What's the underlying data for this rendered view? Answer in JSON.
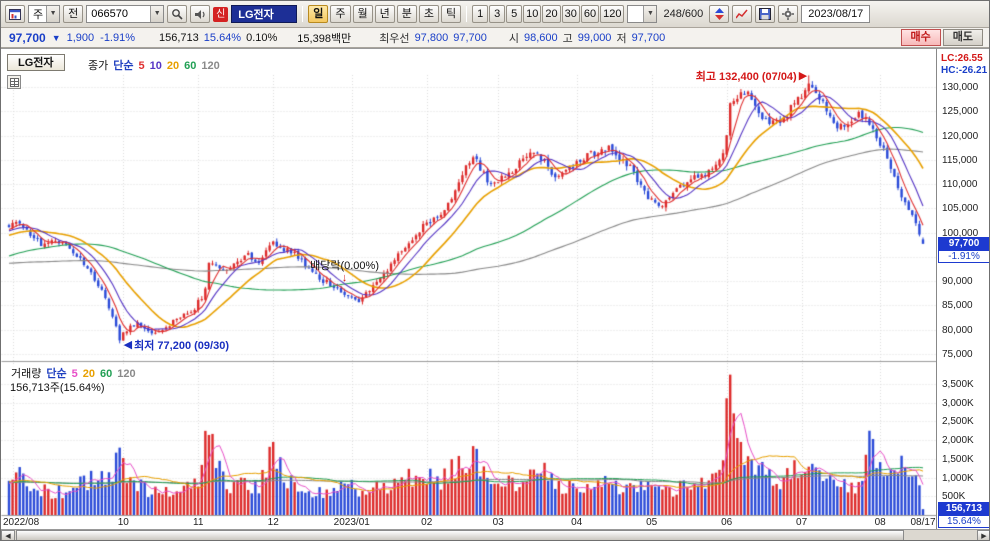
{
  "toolbar": {
    "asset_dropdown": "주",
    "jeon_button": "전",
    "stock_code": "066570",
    "new_badge": "신",
    "stock_name": "LG전자",
    "period_buttons": [
      "일",
      "주",
      "월",
      "년",
      "분",
      "초",
      "틱"
    ],
    "active_period": "일",
    "interval_buttons": [
      "1",
      "3",
      "5",
      "10",
      "20",
      "30",
      "60",
      "120"
    ],
    "candle_count": "248/600",
    "date": "2023/08/17"
  },
  "icons": {
    "dropdown_arrow": "▼",
    "left_arrow": "◀",
    "right_arrow": "▶",
    "marker_right": "▶",
    "marker_left": "◀",
    "marker_down": "↓"
  },
  "quote": {
    "price": "97,700",
    "change_arrow": "▼",
    "change": "1,900",
    "change_pct": "-1.91%",
    "volume": "156,713",
    "volume_ratio": "15.64%",
    "turnover": "0.10%",
    "amount": "15,398백만",
    "best_label": "최우선",
    "best_ask": "97,800",
    "best_bid": "97,700",
    "open_label": "시",
    "open": "98,600",
    "high_label": "고",
    "high": "99,000",
    "low_label": "저",
    "low": "97,700",
    "buy_button": "매수",
    "sell_button": "매도"
  },
  "chart": {
    "tab": "LG전자",
    "lc": "LC:26.55",
    "hc": "HC:-26.21",
    "price_axis": [
      "130,000",
      "125,000",
      "120,000",
      "115,000",
      "110,000",
      "105,000",
      "100,000",
      "95,000",
      "90,000",
      "85,000",
      "80,000",
      "75,000"
    ],
    "current_badge": "97,700",
    "current_pct": "-1.91%",
    "price_legend": {
      "name": "종가",
      "type": "단순",
      "periods": [
        {
          "label": "5",
          "color": "#e03030"
        },
        {
          "label": "10",
          "color": "#5535c5"
        },
        {
          "label": "20",
          "color": "#e8a000"
        },
        {
          "label": "60",
          "color": "#22a055"
        },
        {
          "label": "120",
          "color": "#8a8a8a"
        }
      ]
    },
    "annotations": {
      "high": "최고 132,400 (07/04)",
      "low": "최저 77,200 (09/30)",
      "dividend": "배당락(0.00%)"
    }
  },
  "volume_pane": {
    "legend": {
      "name": "거래량",
      "type": "단순",
      "periods": [
        {
          "label": "5",
          "color": "#e84fc8"
        },
        {
          "label": "20",
          "color": "#e8a000"
        },
        {
          "label": "60",
          "color": "#22a055"
        },
        {
          "label": "120",
          "color": "#8a8a8a"
        }
      ]
    },
    "current_text": "156,713주(15.64%)",
    "axis": [
      "3,500K",
      "3,000K",
      "2,500K",
      "2,000K",
      "1,500K",
      "1,000K",
      "500K"
    ],
    "badge": "156,713",
    "badge_pct": "15.64%"
  },
  "chart_data": {
    "type": "candlestick+volume",
    "count": 257,
    "price_range": {
      "min": 75000,
      "max": 130000,
      "step": 5000
    },
    "volume_range_k": {
      "max": 3500,
      "step": 500
    },
    "colors": {
      "up": "#dd2a2a",
      "down": "#2a4ad8",
      "grid": "#dcdcdc",
      "separator": "#9a9a9a"
    },
    "months": [
      {
        "label": "2022/08",
        "index": 1,
        "grid": true
      },
      {
        "label": "10",
        "index": 32,
        "grid": true
      },
      {
        "label": "11",
        "index": 53,
        "grid": true
      },
      {
        "label": "12",
        "index": 74,
        "grid": true
      },
      {
        "label": "2023/01",
        "index": 96,
        "grid": true
      },
      {
        "label": "02",
        "index": 117,
        "grid": true
      },
      {
        "label": "03",
        "index": 137,
        "grid": true
      },
      {
        "label": "04",
        "index": 159,
        "grid": true
      },
      {
        "label": "05",
        "index": 180,
        "grid": true
      },
      {
        "label": "06",
        "index": 201,
        "grid": true
      },
      {
        "label": "07",
        "index": 222,
        "grid": true
      },
      {
        "label": "08",
        "index": 244,
        "grid": true
      },
      {
        "label": "08/17",
        "index": 256,
        "grid": false
      }
    ],
    "markers": {
      "high": {
        "index": 224,
        "price": 132400
      },
      "low": {
        "index": 31,
        "price": 77200
      },
      "dividend": {
        "index": 94
      }
    },
    "last": {
      "open": 98600,
      "high": 99000,
      "low": 97700,
      "close": 97700,
      "prev_close": 99600,
      "volumeK": 157
    },
    "volume_spike": {
      "index": 202,
      "valueK": 3750
    },
    "price_anchors": [
      [
        0,
        101000
      ],
      [
        2,
        102500
      ],
      [
        5,
        100500
      ],
      [
        9,
        97800
      ],
      [
        13,
        98800
      ],
      [
        17,
        96800
      ],
      [
        21,
        93500
      ],
      [
        26,
        88500
      ],
      [
        30,
        80500
      ],
      [
        31,
        77900
      ],
      [
        33,
        80000
      ],
      [
        36,
        81200
      ],
      [
        40,
        79200
      ],
      [
        44,
        80500
      ],
      [
        48,
        82500
      ],
      [
        52,
        84500
      ],
      [
        55,
        88000
      ],
      [
        56,
        94000
      ],
      [
        58,
        93000
      ],
      [
        61,
        92000
      ],
      [
        64,
        94500
      ],
      [
        67,
        95200
      ],
      [
        70,
        93800
      ],
      [
        74,
        98300
      ],
      [
        76,
        97000
      ],
      [
        80,
        95500
      ],
      [
        84,
        92500
      ],
      [
        88,
        90200
      ],
      [
        92,
        88500
      ],
      [
        95,
        86800
      ],
      [
        98,
        86200
      ],
      [
        101,
        88000
      ],
      [
        104,
        90500
      ],
      [
        107,
        93500
      ],
      [
        110,
        96000
      ],
      [
        113,
        98500
      ],
      [
        116,
        101200
      ],
      [
        119,
        102500
      ],
      [
        122,
        104000
      ],
      [
        125,
        108500
      ],
      [
        128,
        113500
      ],
      [
        130,
        115800
      ],
      [
        133,
        112000
      ],
      [
        135,
        109800
      ],
      [
        138,
        111500
      ],
      [
        141,
        113000
      ],
      [
        144,
        115000
      ],
      [
        147,
        116300
      ],
      [
        150,
        114800
      ],
      [
        153,
        111000
      ],
      [
        156,
        112500
      ],
      [
        159,
        114000
      ],
      [
        162,
        115800
      ],
      [
        165,
        116800
      ],
      [
        168,
        117200
      ],
      [
        171,
        115500
      ],
      [
        174,
        113800
      ],
      [
        177,
        109500
      ],
      [
        180,
        106500
      ],
      [
        182,
        105200
      ],
      [
        185,
        107500
      ],
      [
        188,
        109500
      ],
      [
        191,
        111000
      ],
      [
        194,
        112000
      ],
      [
        197,
        113000
      ],
      [
        200,
        116500
      ],
      [
        201,
        120000
      ],
      [
        202,
        126000
      ],
      [
        204,
        127500
      ],
      [
        206,
        129200
      ],
      [
        208,
        128000
      ],
      [
        211,
        124000
      ],
      [
        214,
        122500
      ],
      [
        217,
        123500
      ],
      [
        220,
        126500
      ],
      [
        222,
        128500
      ],
      [
        224,
        130800
      ],
      [
        226,
        128500
      ],
      [
        229,
        125500
      ],
      [
        232,
        121000
      ],
      [
        235,
        123000
      ],
      [
        238,
        124500
      ],
      [
        240,
        123500
      ],
      [
        242,
        121000
      ],
      [
        244,
        118500
      ],
      [
        246,
        115500
      ],
      [
        248,
        111500
      ],
      [
        250,
        107500
      ],
      [
        252,
        104500
      ],
      [
        254,
        101500
      ],
      [
        255,
        99800
      ],
      [
        256,
        97700
      ]
    ],
    "volume_anchors": [
      [
        0,
        950
      ],
      [
        3,
        1150
      ],
      [
        7,
        700
      ],
      [
        12,
        600
      ],
      [
        16,
        650
      ],
      [
        21,
        850
      ],
      [
        26,
        1000
      ],
      [
        31,
        1400
      ],
      [
        34,
        900
      ],
      [
        40,
        600
      ],
      [
        45,
        650
      ],
      [
        50,
        750
      ],
      [
        54,
        1100
      ],
      [
        56,
        2450
      ],
      [
        58,
        1300
      ],
      [
        62,
        800
      ],
      [
        66,
        900
      ],
      [
        70,
        700
      ],
      [
        74,
        1850
      ],
      [
        77,
        1000
      ],
      [
        82,
        700
      ],
      [
        87,
        600
      ],
      [
        92,
        650
      ],
      [
        95,
        800
      ],
      [
        98,
        600
      ],
      [
        103,
        700
      ],
      [
        107,
        850
      ],
      [
        112,
        1000
      ],
      [
        116,
        1150
      ],
      [
        121,
        900
      ],
      [
        126,
        1500
      ],
      [
        130,
        1650
      ],
      [
        134,
        1000
      ],
      [
        139,
        800
      ],
      [
        144,
        900
      ],
      [
        149,
        1250
      ],
      [
        153,
        900
      ],
      [
        157,
        700
      ],
      [
        162,
        800
      ],
      [
        167,
        850
      ],
      [
        172,
        700
      ],
      [
        177,
        850
      ],
      [
        181,
        950
      ],
      [
        186,
        700
      ],
      [
        191,
        800
      ],
      [
        196,
        950
      ],
      [
        200,
        1600
      ],
      [
        202,
        3750
      ],
      [
        204,
        2300
      ],
      [
        206,
        1500
      ],
      [
        211,
        1100
      ],
      [
        216,
        900
      ],
      [
        221,
        1250
      ],
      [
        224,
        1300
      ],
      [
        228,
        1000
      ],
      [
        232,
        950
      ],
      [
        236,
        800
      ],
      [
        239,
        750
      ],
      [
        241,
        2100
      ],
      [
        243,
        1500
      ],
      [
        245,
        1200
      ],
      [
        248,
        1600
      ],
      [
        250,
        1300
      ],
      [
        252,
        1000
      ],
      [
        254,
        850
      ],
      [
        255,
        800
      ],
      [
        256,
        157
      ]
    ],
    "pre_price_anchors": [
      [
        -120,
        97000
      ],
      [
        -90,
        91500
      ],
      [
        -60,
        89000
      ],
      [
        -30,
        95000
      ],
      [
        -10,
        99500
      ],
      [
        -1,
        100800
      ]
    ],
    "pre_volume_anchors": [
      [
        -120,
        850
      ],
      [
        -1,
        900
      ]
    ]
  },
  "x_axis_note": "labels generated from chart_data.months"
}
